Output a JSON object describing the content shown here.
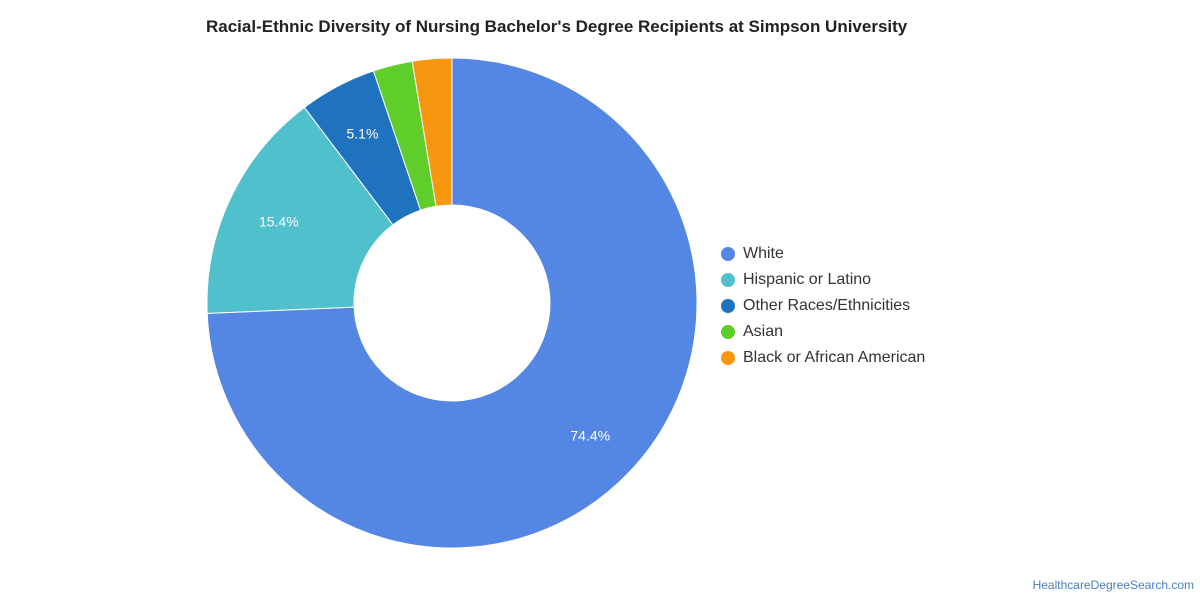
{
  "chart_data": {
    "type": "pie",
    "title": "Racial-Ethnic Diversity of Nursing Bachelor's Degree Recipients at Simpson University",
    "donut": true,
    "legend_position": "right",
    "slices": [
      {
        "name": "White",
        "value": 74.4,
        "label": "74.4%",
        "color": "#5486e3"
      },
      {
        "name": "Hispanic or Latino",
        "value": 15.4,
        "label": "15.4%",
        "color": "#50c0cc"
      },
      {
        "name": "Other Races/Ethnicities",
        "value": 5.1,
        "label": "5.1%",
        "color": "#1f72bd"
      },
      {
        "name": "Asian",
        "value": 2.6,
        "label": "",
        "color": "#5fcd2a"
      },
      {
        "name": "Black or African American",
        "value": 2.6,
        "label": "",
        "color": "#f7960f"
      }
    ]
  },
  "footer": {
    "source": "HealthcareDegreeSearch.com"
  }
}
